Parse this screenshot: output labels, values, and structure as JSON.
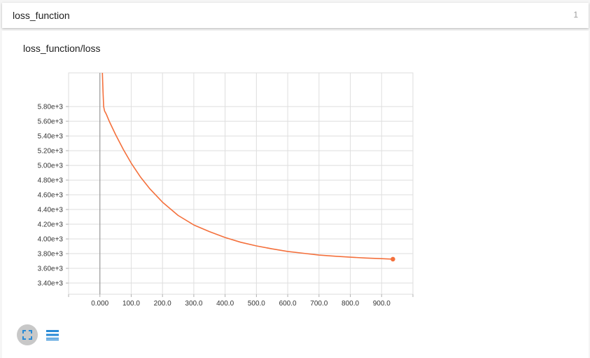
{
  "header": {
    "title": "loss_function",
    "count": "1"
  },
  "card": {
    "title": "loss_function/loss"
  },
  "buttons": {
    "expand_icon": "fullscreen-icon",
    "data_icon": "list-icon"
  },
  "colors": {
    "line": "#f4703c",
    "grid": "#dedede",
    "axis": "#b0b0b0",
    "accent": "#288ad6"
  },
  "chart_data": {
    "type": "line",
    "title": "",
    "xlabel": "",
    "ylabel": "",
    "xlim": [
      -100,
      1000
    ],
    "ylim": [
      3248,
      6258
    ],
    "x_ticks": [
      "0.000",
      "100.0",
      "200.0",
      "300.0",
      "400.0",
      "500.0",
      "600.0",
      "700.0",
      "800.0",
      "900.0"
    ],
    "y_ticks": [
      "3.40e+3",
      "3.60e+3",
      "3.80e+3",
      "4.00e+3",
      "4.20e+3",
      "4.40e+3",
      "4.60e+3",
      "4.80e+3",
      "5.00e+3",
      "5.20e+3",
      "5.40e+3",
      "5.60e+3",
      "5.80e+3"
    ],
    "grid": true,
    "series": [
      {
        "color": "#f4703c",
        "x": [
          8,
          10,
          12,
          15,
          20,
          30,
          50,
          75,
          100,
          130,
          160,
          200,
          250,
          300,
          350,
          400,
          450,
          500,
          550,
          600,
          650,
          700,
          750,
          800,
          850,
          900,
          936
        ],
        "y": [
          6258,
          6000,
          5800,
          5740,
          5700,
          5600,
          5420,
          5215,
          5030,
          4840,
          4680,
          4500,
          4320,
          4190,
          4100,
          4020,
          3955,
          3905,
          3865,
          3830,
          3805,
          3780,
          3765,
          3752,
          3740,
          3732,
          3725
        ]
      }
    ]
  }
}
